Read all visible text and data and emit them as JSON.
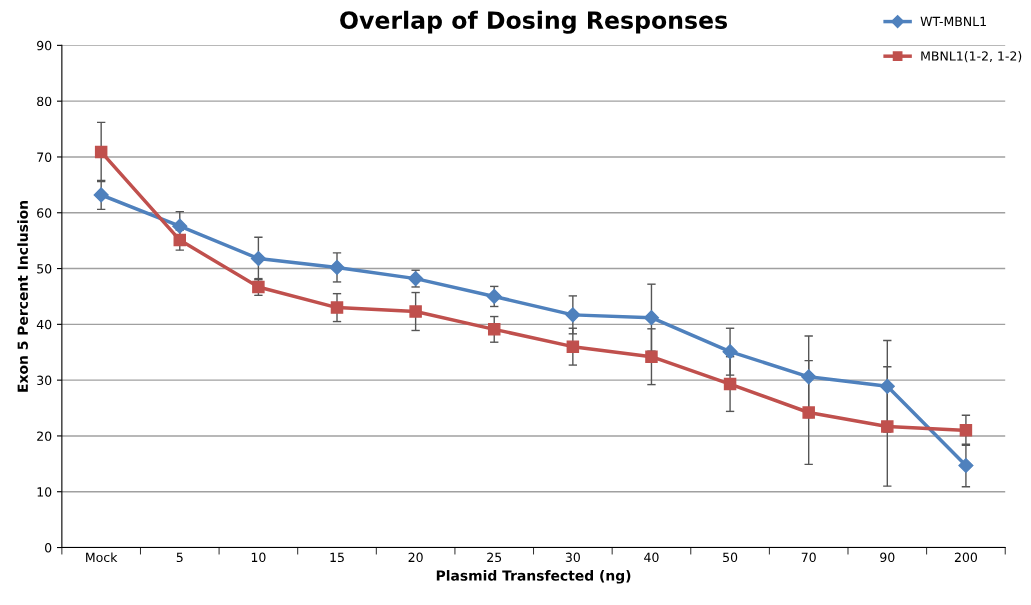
{
  "chart_data": {
    "type": "line",
    "title": "Overlap of Dosing Responses",
    "xlabel": "Plasmid Transfected (ng)",
    "ylabel": "Exon 5 Percent Inclusion",
    "categories": [
      "Mock",
      "5",
      "10",
      "15",
      "20",
      "25",
      "30",
      "40",
      "50",
      "70",
      "90",
      "200"
    ],
    "ylim": [
      0,
      90
    ],
    "yticks": [
      0,
      10,
      20,
      30,
      40,
      50,
      60,
      70,
      80,
      90
    ],
    "grid": "y",
    "legend": "top right",
    "line_style": "solid",
    "series": [
      {
        "name": "WT-MBNL1",
        "color": "#4f81bd",
        "marker": "diamond",
        "values": [
          63.2,
          57.6,
          51.8,
          50.2,
          48.2,
          45.0,
          41.7,
          41.2,
          35.1,
          30.6,
          28.9,
          14.7
        ],
        "errors": [
          2.6,
          2.6,
          3.8,
          2.6,
          1.5,
          1.8,
          3.4,
          6.0,
          4.2,
          7.3,
          8.2,
          3.8
        ]
      },
      {
        "name": "MBNL1(1-2, 1-2)",
        "color": "#c0504d",
        "marker": "square",
        "values": [
          70.9,
          55.1,
          46.7,
          43.0,
          42.3,
          39.1,
          36.0,
          34.2,
          29.3,
          24.2,
          21.7,
          21.0
        ],
        "errors": [
          5.3,
          1.8,
          1.5,
          2.5,
          3.4,
          2.3,
          3.3,
          5.0,
          4.9,
          9.3,
          10.7,
          2.7
        ]
      }
    ]
  }
}
